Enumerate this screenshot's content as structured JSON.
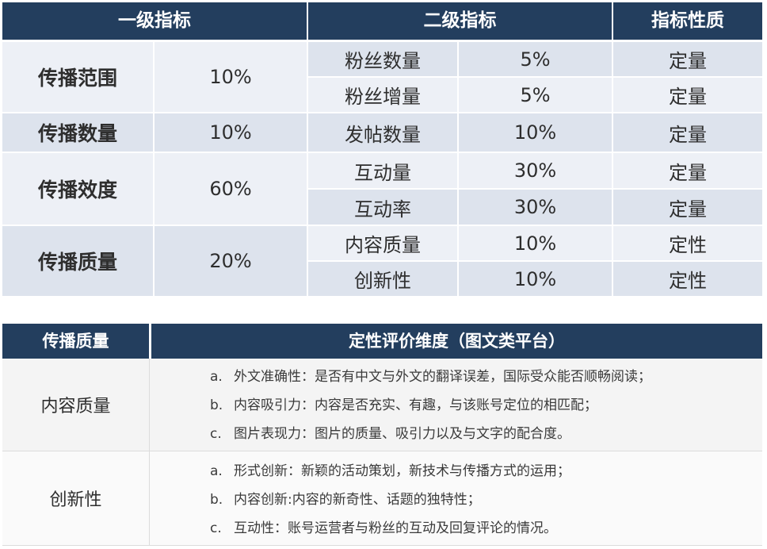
{
  "top_table": {
    "headers": [
      "一级指标",
      "二级指标",
      "指标性质"
    ],
    "groups": [
      {
        "name": "传播范围",
        "weight": "10%",
        "subs": [
          {
            "name": "粉丝数量",
            "weight": "5%",
            "nature": "定量"
          },
          {
            "name": "粉丝增量",
            "weight": "5%",
            "nature": "定量"
          }
        ]
      },
      {
        "name": "传播数量",
        "weight": "10%",
        "subs": [
          {
            "name": "发帖数量",
            "weight": "10%",
            "nature": "定量"
          }
        ]
      },
      {
        "name": "传播效度",
        "weight": "60%",
        "subs": [
          {
            "name": "互动量",
            "weight": "30%",
            "nature": "定量"
          },
          {
            "name": "互动率",
            "weight": "30%",
            "nature": "定量"
          }
        ]
      },
      {
        "name": "传播质量",
        "weight": "20%",
        "subs": [
          {
            "name": "内容质量",
            "weight": "10%",
            "nature": "定性"
          },
          {
            "name": "创新性",
            "weight": "10%",
            "nature": "定性"
          }
        ]
      }
    ]
  },
  "bottom_table": {
    "headers": [
      "传播质量",
      "定性评价维度（图文类平台）"
    ],
    "rows": [
      {
        "name": "内容质量",
        "items": [
          {
            "marker": "a.",
            "text": "外文准确性：是否有中文与外文的翻译误差，国际受众能否顺畅阅读；"
          },
          {
            "marker": "b.",
            "text": "内容吸引力：内容是否充实、有趣，与该账号定位的相匹配；"
          },
          {
            "marker": "c.",
            "text": "图片表现力：图片的质量、吸引力以及与文字的配合度。"
          }
        ]
      },
      {
        "name": "创新性",
        "items": [
          {
            "marker": "a.",
            "text": "形式创新：新颖的活动策划，新技术与传播方式的运用；"
          },
          {
            "marker": "b.",
            "text": "内容创新:内容的新奇性、话题的独特性；"
          },
          {
            "marker": "c.",
            "text": "互动性：账号运营者与粉丝的互动及回复评论的情况。"
          }
        ]
      }
    ]
  },
  "colors": {
    "header_bg": "#233e5e",
    "row_light": "#edf0f6",
    "row_dark": "#dde3ed",
    "bottom_row_a": "#f5f5f5",
    "bottom_row_b": "#fbfbfb"
  }
}
